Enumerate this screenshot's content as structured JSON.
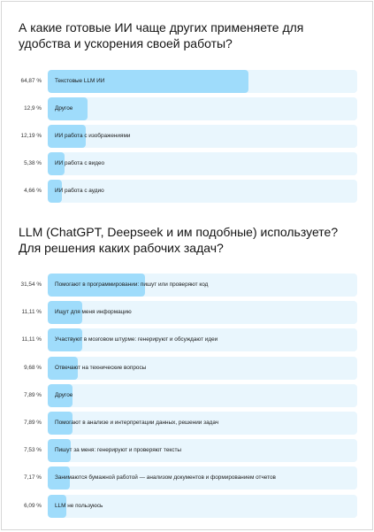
{
  "chart_data": [
    {
      "type": "bar",
      "orientation": "horizontal",
      "title": "А какие готовые ИИ чаще других применяете для удобства и ускорения своей работы?",
      "categories": [
        "Текстовые LLM ИИ",
        "Другое",
        "ИИ работа с изображениями",
        "ИИ работа с видео",
        "ИИ работа с аудио"
      ],
      "values": [
        64.87,
        12.9,
        12.19,
        5.38,
        4.66
      ],
      "value_labels": [
        "64,87 %",
        "12,9 %",
        "12,19 %",
        "5,38 %",
        "4,66 %"
      ],
      "unit": "%",
      "xlim": [
        0,
        100
      ],
      "grid": false,
      "colors": {
        "fill": "#9fdcfb",
        "track": "#e9f6fd"
      }
    },
    {
      "type": "bar",
      "orientation": "horizontal",
      "title": "LLM (ChatGPT, Deepseek и им подобные) используете? Для решения каких рабочих задач?",
      "categories": [
        "Помогают в программировании: пишут или проверяют код",
        "Ищут для меня информацию",
        "Участвуют в мозговом штурме: генерируют и обсуждают идеи",
        "Отвечают на технические вопросы",
        "Другое",
        "Помогают в анализе и интерпретации данных, решении задач",
        "Пишут за меня: генерируют и проверяют тексты",
        "Занимаются бумажной работой — анализом документов и формированием отчетов",
        "LLM не пользуюсь"
      ],
      "values": [
        31.54,
        11.11,
        11.11,
        9.68,
        7.89,
        7.89,
        7.53,
        7.17,
        6.09
      ],
      "value_labels": [
        "31,54 %",
        "11,11 %",
        "11,11 %",
        "9,68 %",
        "7,89 %",
        "7,89 %",
        "7,53 %",
        "7,17 %",
        "6,09 %"
      ],
      "unit": "%",
      "xlim": [
        0,
        100
      ],
      "grid": false,
      "colors": {
        "fill": "#9fdcfb",
        "track": "#e9f6fd"
      }
    }
  ]
}
